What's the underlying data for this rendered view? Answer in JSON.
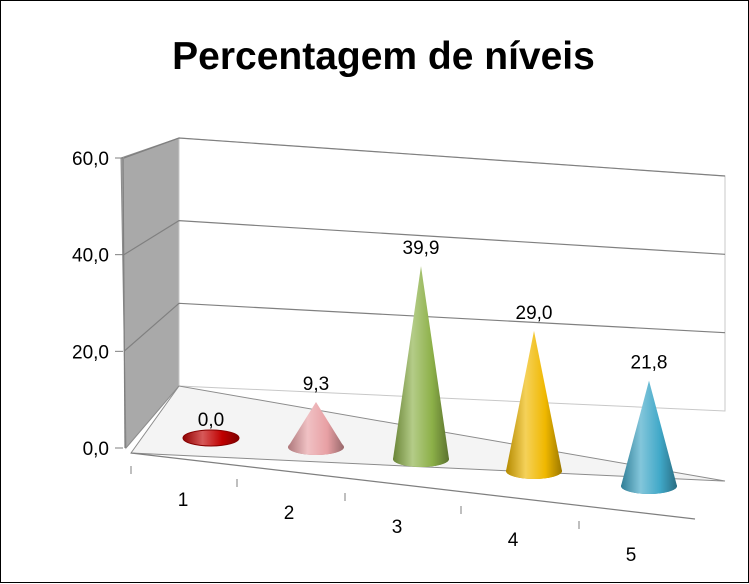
{
  "chart_data": {
    "type": "bar",
    "style": "3d-cone",
    "title": "Percentagem de níveis",
    "categories": [
      "1",
      "2",
      "3",
      "4",
      "5"
    ],
    "values": [
      0.0,
      9.3,
      39.9,
      29.0,
      21.8
    ],
    "value_labels": [
      "0,0",
      "9,3",
      "39,9",
      "29,0",
      "21,8"
    ],
    "y_ticks": [
      "0,0",
      "20,0",
      "40,0",
      "60,0"
    ],
    "ylim": [
      0,
      60
    ],
    "grid": true,
    "legend": "none",
    "xlabel": "",
    "ylabel": ""
  },
  "colors": {
    "cones": [
      "#c00000",
      "#e8a0a4",
      "#8cb048",
      "#f0b800",
      "#40a8c8"
    ],
    "walls": "#b0b0b0",
    "gridlines": "#808080"
  }
}
